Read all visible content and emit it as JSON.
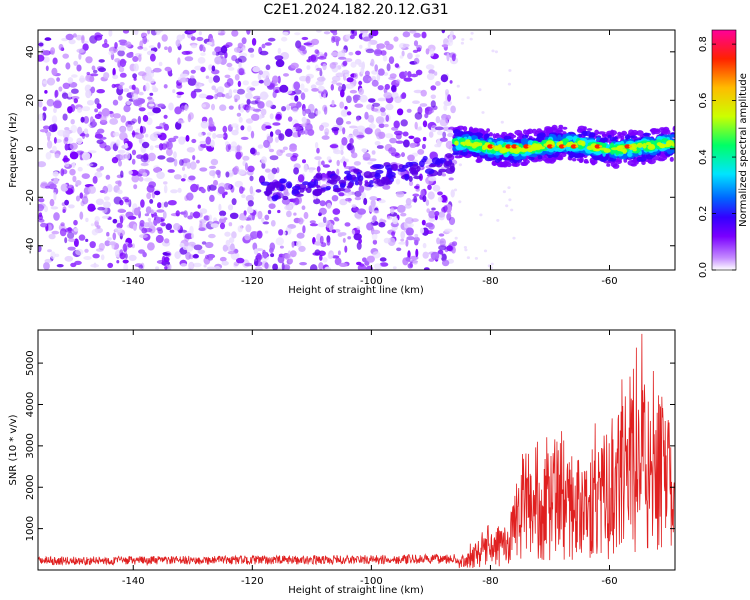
{
  "title": "C2E1.2024.182.20.12.G31",
  "chart_data": [
    {
      "type": "heatmap",
      "xlabel": "Height of straight line (km)",
      "ylabel": "Frequency (Hz)",
      "xlim": [
        -156,
        -49
      ],
      "ylim": [
        -50,
        49
      ],
      "xticks": [
        -140,
        -120,
        -100,
        -80,
        -60
      ],
      "yticks": [
        -40,
        -20,
        0,
        20,
        40
      ],
      "colorbar": {
        "label": "Normalized spectral amplitude",
        "range": [
          0,
          0.85
        ],
        "ticks": [
          0.0,
          0.2,
          0.4,
          0.6,
          0.8
        ],
        "colors": [
          "#ffffff",
          "#c58cff",
          "#7a00ff",
          "#3300ff",
          "#0066ff",
          "#00e5ff",
          "#00ff66",
          "#ccff00",
          "#ffbb00",
          "#ff2200",
          "#ff0099"
        ]
      },
      "signal_track": {
        "description_x_range": [
          -86,
          -49
        ],
        "frequency_center": 1,
        "noise_region_x_range": [
          -156,
          -86
        ]
      }
    },
    {
      "type": "line",
      "xlabel": "Height of straight line (km)",
      "ylabel": "SNR (10 * v/v)",
      "xlim": [
        -156,
        -49
      ],
      "ylim": [
        0,
        5800
      ],
      "xticks": [
        -140,
        -120,
        -100,
        -80,
        -60
      ],
      "yticks": [
        1000,
        2000,
        3000,
        4000,
        5000
      ],
      "series": [
        {
          "name": "SNR",
          "color": "#e02020",
          "envelope_x": [
            -156,
            -140,
            -120,
            -100,
            -90,
            -85,
            -82,
            -80,
            -77,
            -75,
            -72,
            -70,
            -66,
            -63,
            -60,
            -58,
            -56,
            -54,
            -52,
            -50,
            -49
          ],
          "envelope_y": [
            220,
            230,
            240,
            250,
            260,
            300,
            700,
            900,
            1200,
            2200,
            2600,
            2800,
            2600,
            2900,
            3300,
            3800,
            4800,
            4500,
            4200,
            3500,
            2000
          ]
        }
      ]
    }
  ]
}
